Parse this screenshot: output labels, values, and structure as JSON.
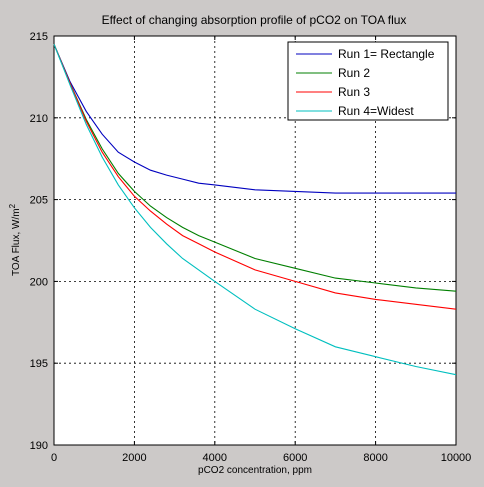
{
  "chart_data": {
    "type": "line",
    "title": "Effect of changing absorption profile of pCO2 on TOA flux",
    "xlabel": "pCO2 concentration, ppm",
    "ylabel": "TOA Flux, W/m",
    "ylabel_superscript": "2",
    "xlim": [
      0,
      10000
    ],
    "ylim": [
      190,
      215
    ],
    "xticks": [
      0,
      2000,
      4000,
      6000,
      8000,
      10000
    ],
    "yticks": [
      190,
      195,
      200,
      205,
      210,
      215
    ],
    "xtick_labels": [
      "0",
      "2000",
      "4000",
      "6000",
      "8000",
      "10000"
    ],
    "ytick_labels": [
      "190",
      "195",
      "200",
      "205",
      "210",
      "215"
    ],
    "grid": true,
    "legend_position": "top-right",
    "series": [
      {
        "name": "Run 1= Rectangle",
        "color": "#0000bf",
        "x": [
          0,
          400,
          800,
          1200,
          1600,
          2000,
          2400,
          2800,
          3200,
          3600,
          4000,
          5000,
          6000,
          7000,
          8000,
          9000,
          10000
        ],
        "y": [
          214.5,
          212.2,
          210.4,
          209.0,
          207.9,
          207.3,
          206.8,
          206.5,
          206.25,
          206.0,
          205.9,
          205.6,
          205.5,
          205.4,
          205.4,
          205.4,
          205.4
        ]
      },
      {
        "name": "Run 2",
        "color": "#007f00",
        "x": [
          0,
          400,
          800,
          1200,
          1600,
          2000,
          2400,
          2800,
          3200,
          3600,
          4000,
          5000,
          6000,
          7000,
          8000,
          9000,
          10000
        ],
        "y": [
          214.5,
          212.1,
          209.9,
          208.1,
          206.6,
          205.5,
          204.6,
          203.9,
          203.3,
          202.8,
          202.4,
          201.4,
          200.8,
          200.2,
          199.9,
          199.6,
          199.4
        ]
      },
      {
        "name": "Run 3",
        "color": "#ff0000",
        "x": [
          0,
          400,
          800,
          1200,
          1600,
          2000,
          2400,
          2800,
          3200,
          3600,
          4000,
          5000,
          6000,
          7000,
          8000,
          9000,
          10000
        ],
        "y": [
          214.5,
          212.1,
          209.8,
          207.9,
          206.4,
          205.2,
          204.3,
          203.5,
          202.8,
          202.3,
          201.8,
          200.7,
          200.0,
          199.3,
          198.9,
          198.6,
          198.3
        ]
      },
      {
        "name": "Run 4=Widest",
        "color": "#00bfbf",
        "x": [
          0,
          400,
          800,
          1200,
          1600,
          2000,
          2400,
          2800,
          3200,
          3600,
          4000,
          5000,
          6000,
          7000,
          8000,
          9000,
          10000
        ],
        "y": [
          214.5,
          212.0,
          209.6,
          207.6,
          205.9,
          204.5,
          203.3,
          202.3,
          201.4,
          200.7,
          200.0,
          198.3,
          197.1,
          196.0,
          195.4,
          194.8,
          194.3
        ]
      }
    ]
  }
}
